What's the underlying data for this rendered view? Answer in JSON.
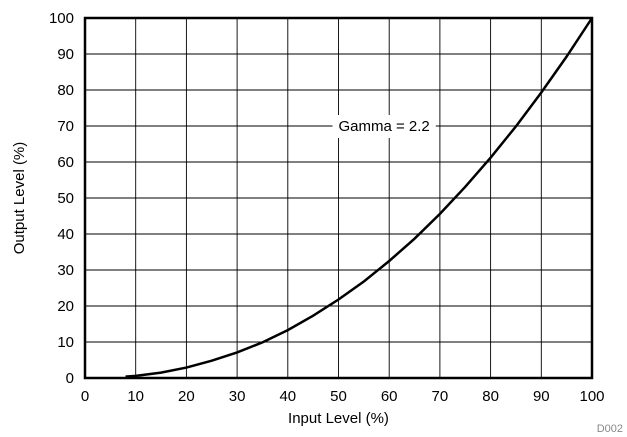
{
  "chart_data": {
    "type": "line",
    "title": "",
    "xlabel": "Input Level (%)",
    "ylabel": "Output Level (%)",
    "xlim": [
      0,
      100
    ],
    "ylim": [
      0,
      100
    ],
    "xticks": [
      0,
      10,
      20,
      30,
      40,
      50,
      60,
      70,
      80,
      90,
      100
    ],
    "yticks": [
      0,
      10,
      20,
      30,
      40,
      50,
      60,
      70,
      80,
      90,
      100
    ],
    "grid": true,
    "series": [
      {
        "name": "",
        "color": "#000000",
        "x": [
          8,
          10,
          15,
          20,
          25,
          30,
          35,
          40,
          45,
          50,
          55,
          60,
          65,
          70,
          75,
          80,
          85,
          90,
          95,
          100
        ],
        "y": [
          0.4,
          0.6,
          1.5,
          2.9,
          4.8,
          7.1,
          9.9,
          13.3,
          17.3,
          21.8,
          26.8,
          32.5,
          38.7,
          45.6,
          53.1,
          61.2,
          69.9,
          79.3,
          89.3,
          100
        ]
      }
    ],
    "annotations": [
      {
        "text": "Gamma = 2.2",
        "x": 59,
        "y": 70
      }
    ],
    "figure_id": "D002"
  }
}
